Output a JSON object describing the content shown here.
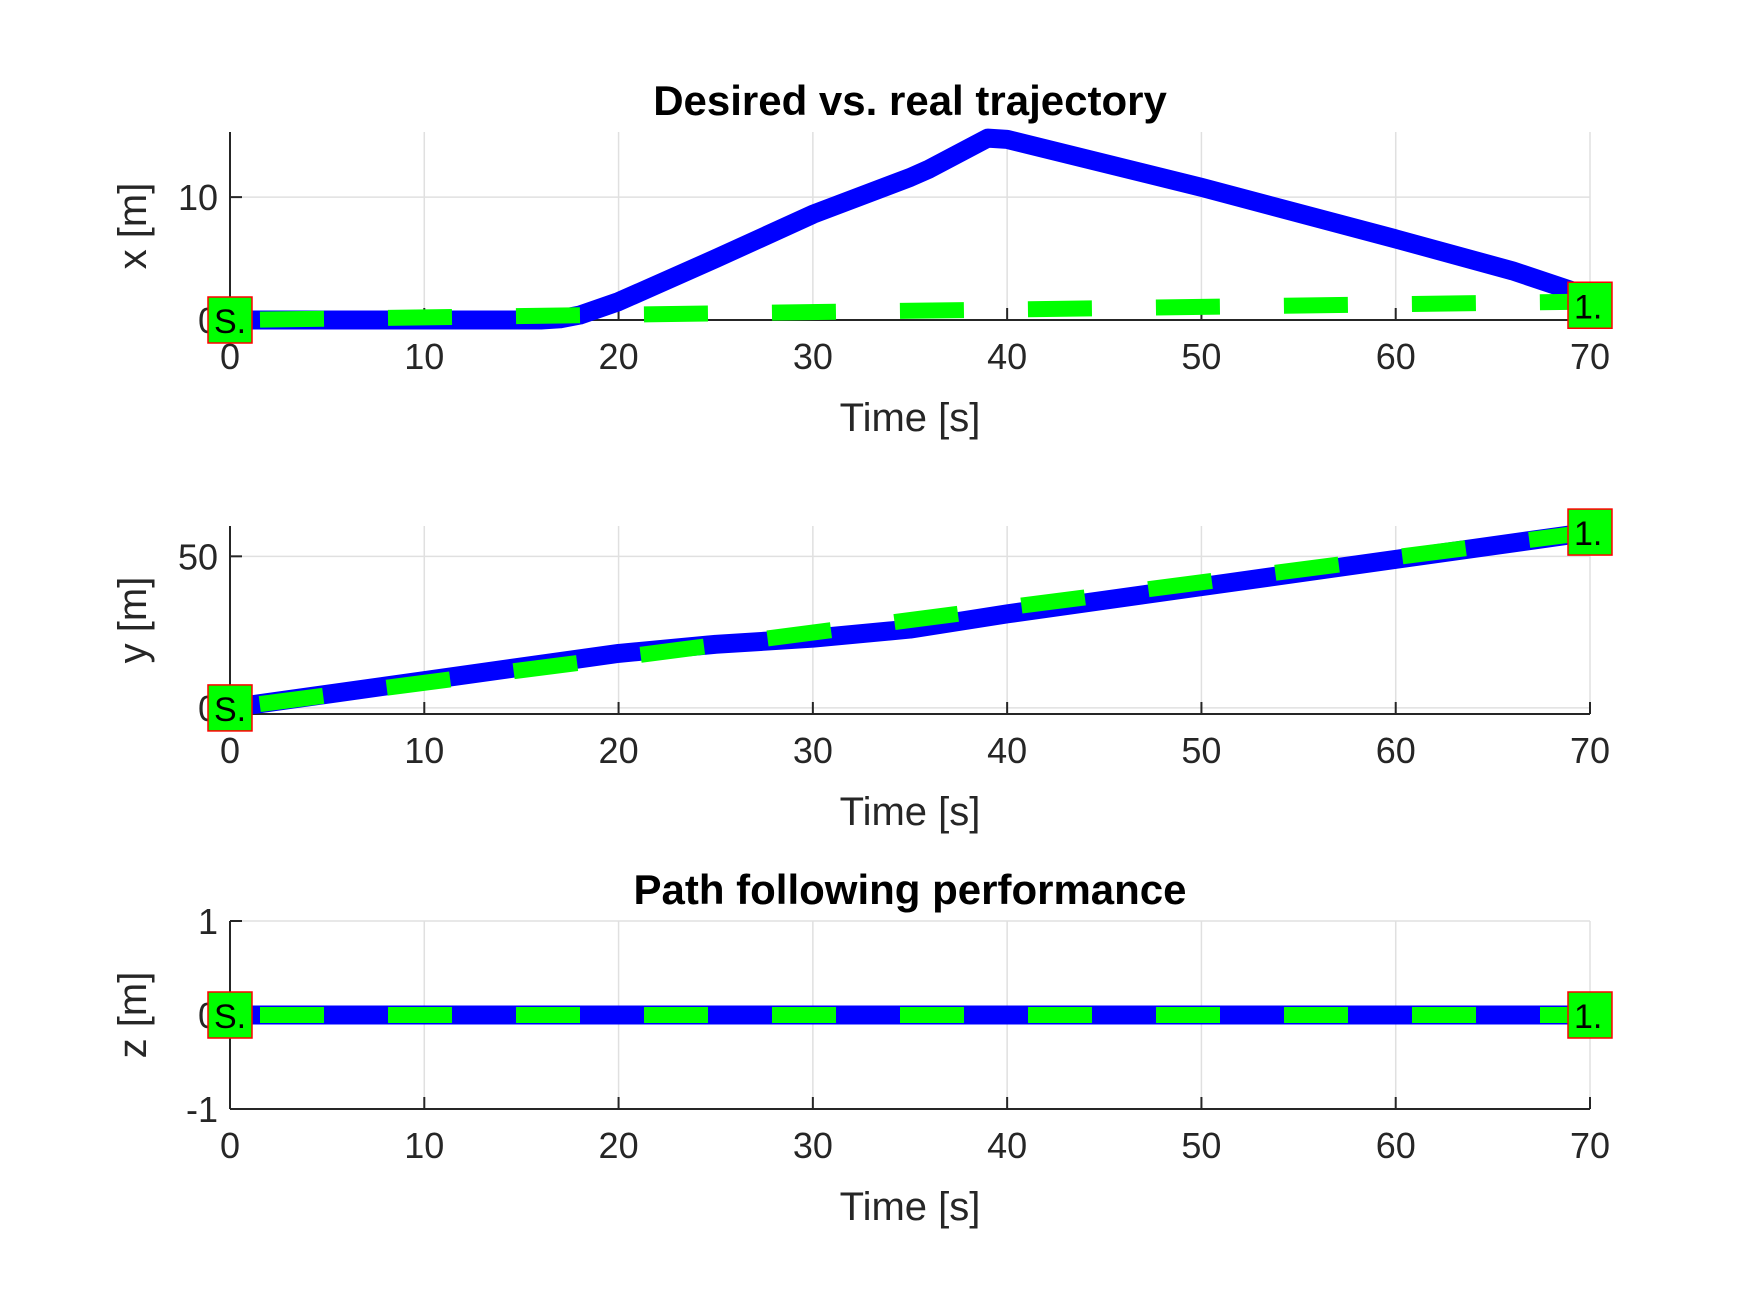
{
  "colors": {
    "real": "#0000ff",
    "desired": "#00ff00",
    "marker_fill": "#00ff00",
    "marker_edge": "#ff0000",
    "grid": "#e0e0e0",
    "axis": "#262626"
  },
  "chart_data": [
    {
      "type": "line",
      "title": "Desired vs. real trajectory",
      "xlabel": "Time [s]",
      "ylabel": "x [m]",
      "xlim": [
        0,
        70
      ],
      "ylim": [
        0,
        15.3
      ],
      "xticks": [
        "0",
        "10",
        "20",
        "30",
        "40",
        "50",
        "60",
        "70"
      ],
      "yticks": [
        {
          "v": 0,
          "label": "0"
        },
        {
          "v": 10,
          "label": "10"
        }
      ],
      "grid": true,
      "series": [
        {
          "style": "solid",
          "color": "#0000ff",
          "x": [
            0,
            10,
            16,
            17,
            18,
            20,
            25,
            30,
            35,
            36,
            39,
            40,
            50,
            60,
            66,
            70
          ],
          "y": [
            0,
            0,
            0,
            0.1,
            0.4,
            1.5,
            5.0,
            8.6,
            11.6,
            12.3,
            14.8,
            14.7,
            10.8,
            6.6,
            4.0,
            1.9
          ]
        },
        {
          "style": "dashed",
          "color": "#00ff00",
          "x": [
            0,
            70
          ],
          "y": [
            0,
            1.5
          ]
        }
      ],
      "markers": [
        {
          "x": 0,
          "y": 0,
          "label": "S."
        },
        {
          "x": 70,
          "y": 1.2,
          "label": "1."
        }
      ]
    },
    {
      "type": "line",
      "title": "",
      "xlabel": "Time [s]",
      "ylabel": "y [m]",
      "xlim": [
        0,
        70
      ],
      "ylim": [
        -2,
        60
      ],
      "xticks": [
        "0",
        "10",
        "20",
        "30",
        "40",
        "50",
        "60",
        "70"
      ],
      "yticks": [
        {
          "v": 0,
          "label": "0"
        },
        {
          "v": 50,
          "label": "50"
        }
      ],
      "grid": true,
      "series": [
        {
          "style": "solid",
          "color": "#0000ff",
          "x": [
            0,
            10,
            20,
            25,
            30,
            35,
            40,
            50,
            60,
            70
          ],
          "y": [
            0,
            9,
            18,
            21,
            23,
            26,
            31,
            40,
            49,
            58
          ]
        },
        {
          "style": "dashed",
          "color": "#00ff00",
          "x": [
            0,
            70
          ],
          "y": [
            0,
            58
          ]
        }
      ],
      "markers": [
        {
          "x": 0,
          "y": 0,
          "label": "S."
        },
        {
          "x": 70,
          "y": 58,
          "label": "1."
        }
      ]
    },
    {
      "type": "line",
      "title": "Path following performance",
      "xlabel": "Time [s]",
      "ylabel": "z [m]",
      "xlim": [
        0,
        70
      ],
      "ylim": [
        -1,
        1
      ],
      "xticks": [
        "0",
        "10",
        "20",
        "30",
        "40",
        "50",
        "60",
        "70"
      ],
      "yticks": [
        {
          "v": 1,
          "label": "1"
        },
        {
          "v": 0,
          "label": "0"
        },
        {
          "v": -1,
          "label": "-1"
        }
      ],
      "grid": true,
      "series": [
        {
          "style": "solid",
          "color": "#0000ff",
          "x": [
            0,
            70
          ],
          "y": [
            0,
            0
          ]
        },
        {
          "style": "dashed",
          "color": "#00ff00",
          "x": [
            0,
            70
          ],
          "y": [
            0,
            0
          ]
        }
      ],
      "markers": [
        {
          "x": 0,
          "y": 0,
          "label": "S."
        },
        {
          "x": 70,
          "y": 0,
          "label": "1."
        }
      ]
    }
  ]
}
